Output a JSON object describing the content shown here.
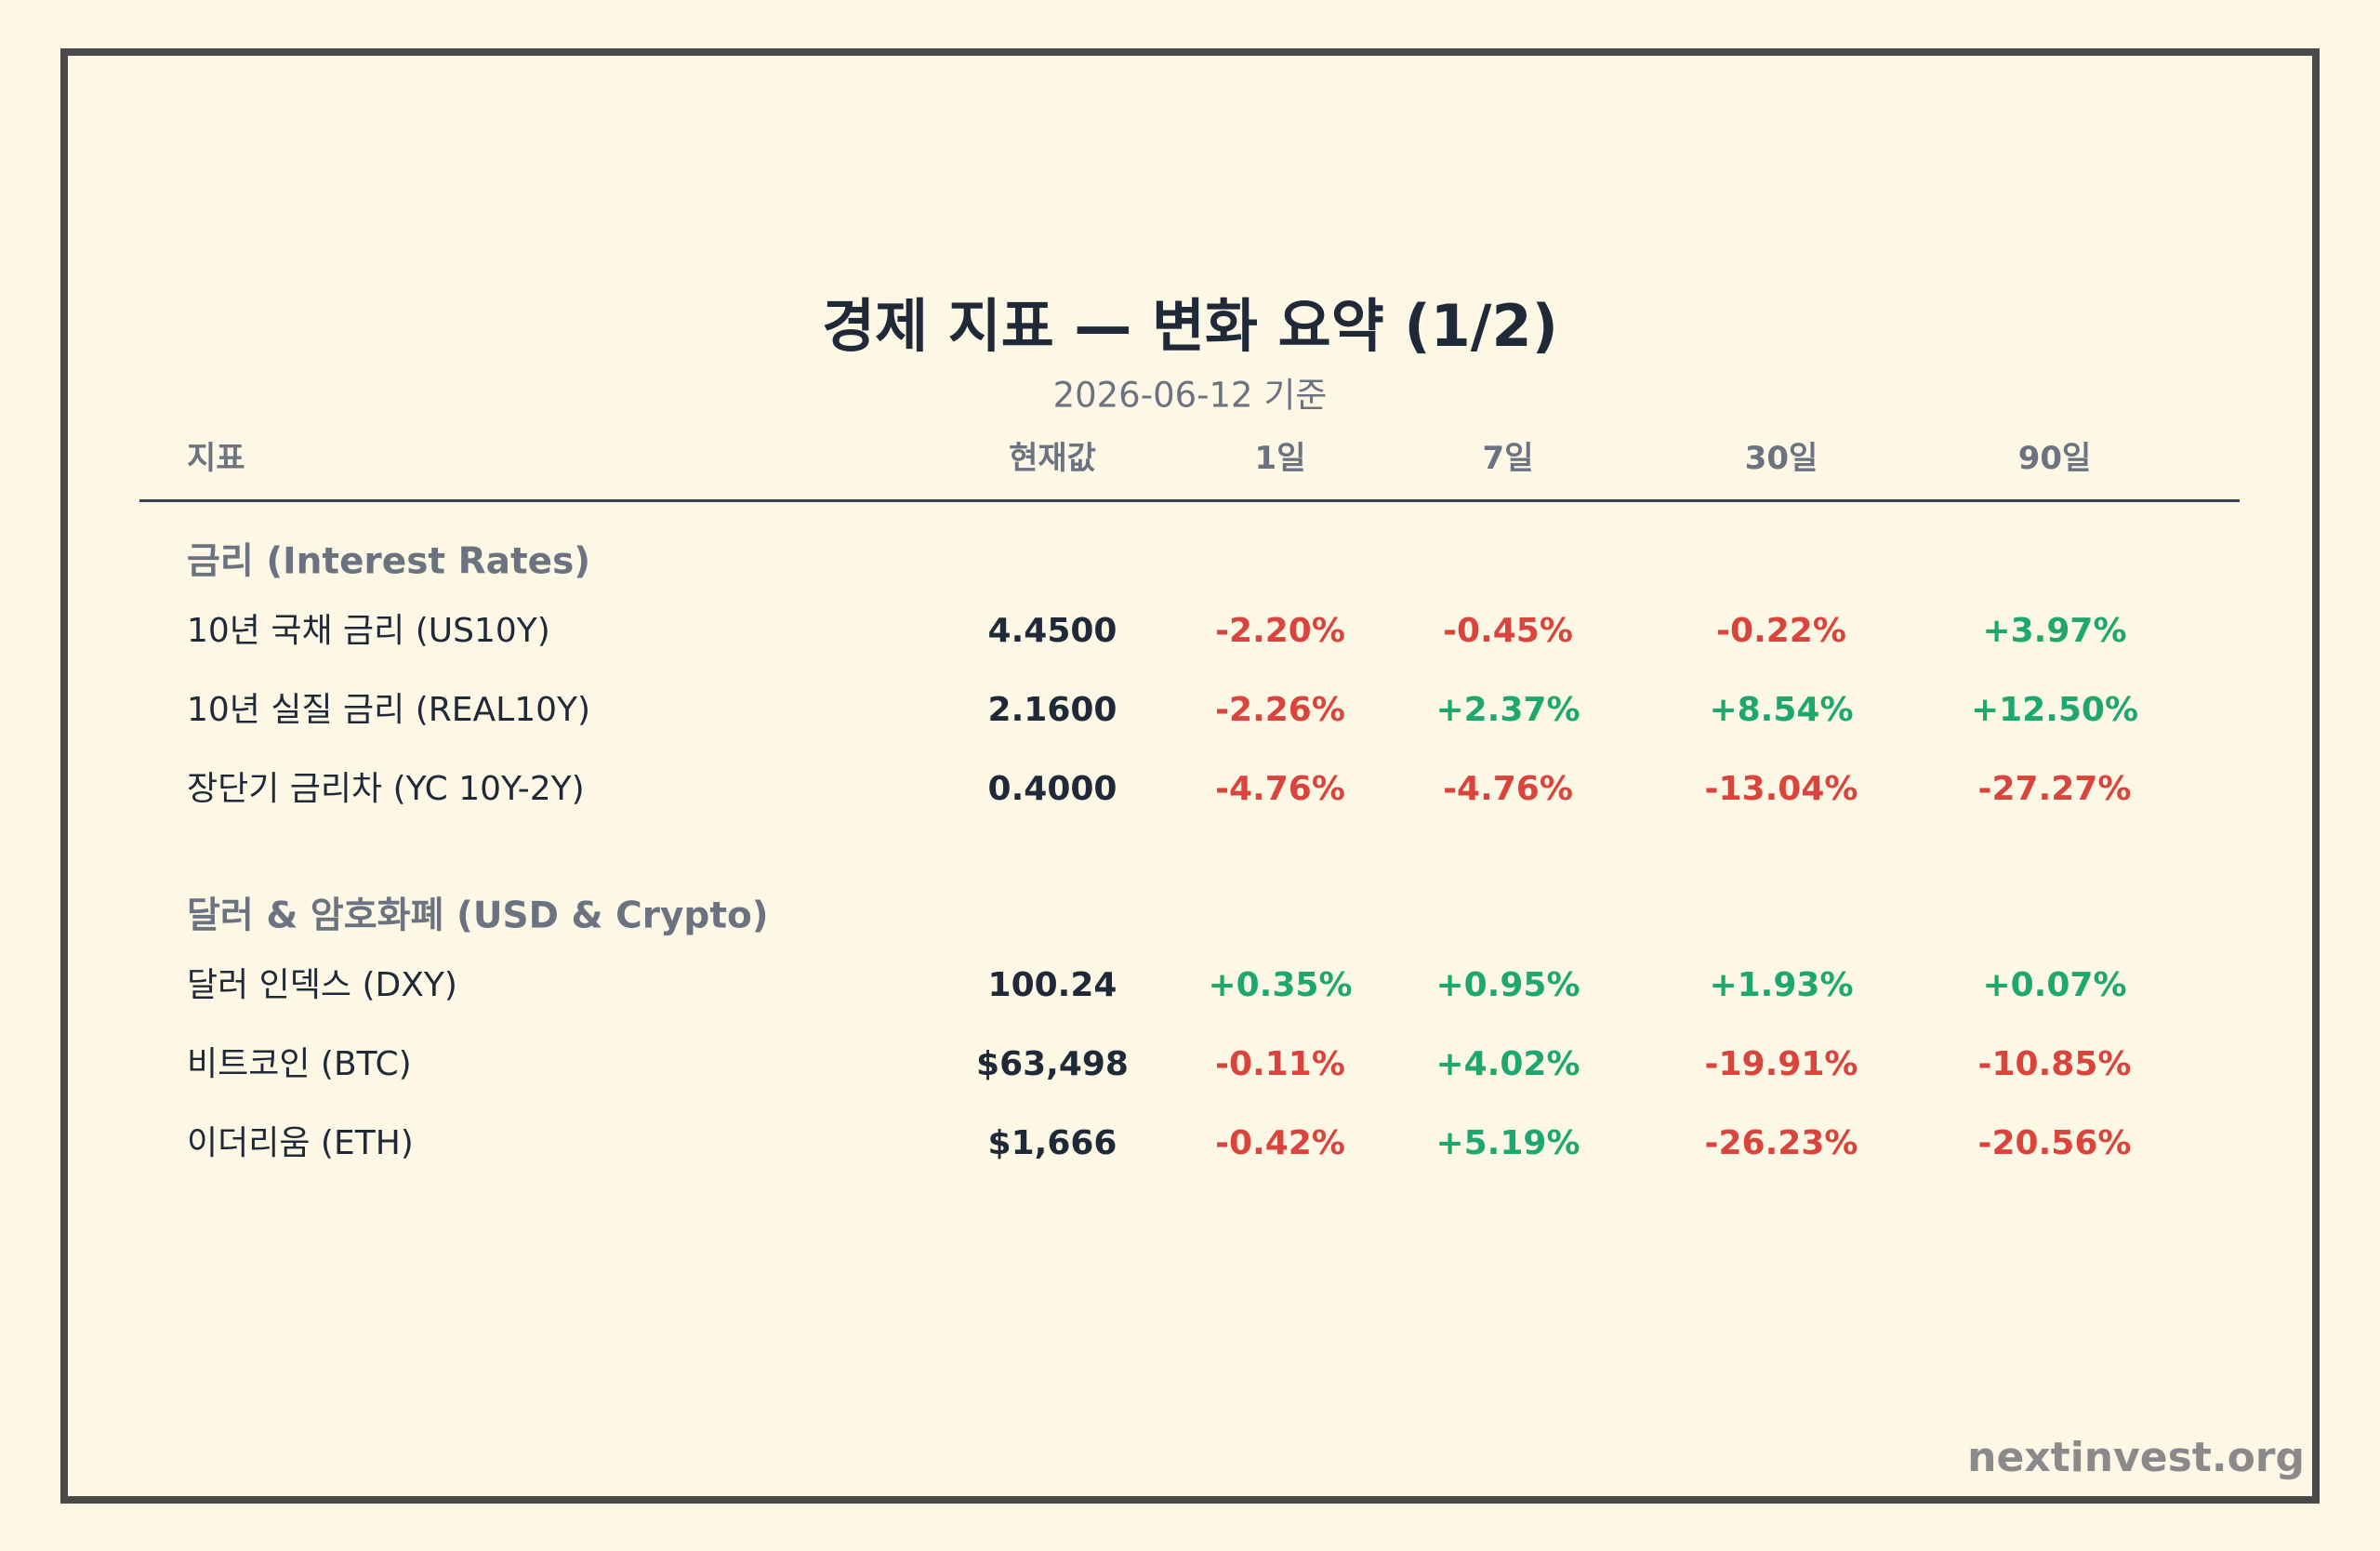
{
  "header": {
    "title": "경제 지표 — 변화 요약 (1/2)",
    "subtitle": "2026-06-12 기준"
  },
  "table": {
    "columns": [
      "지표",
      "현재값",
      "1일",
      "7일",
      "30일",
      "90일"
    ],
    "sections": [
      {
        "title": "금리 (Interest Rates)",
        "rows": [
          [
            "10년 국채 금리 (US10Y)",
            "4.4500",
            "-2.20%",
            "-0.45%",
            "-0.22%",
            "+3.97%"
          ],
          [
            "10년 실질 금리 (REAL10Y)",
            "2.1600",
            "-2.26%",
            "+2.37%",
            "+8.54%",
            "+12.50%"
          ],
          [
            "장단기 금리차 (YC 10Y-2Y)",
            "0.4000",
            "-4.76%",
            "-4.76%",
            "-13.04%",
            "-27.27%"
          ]
        ]
      },
      {
        "title": "달러 & 암호화폐 (USD & Crypto)",
        "rows": [
          [
            "달러 인덱스 (DXY)",
            "100.24",
            "+0.35%",
            "+0.95%",
            "+1.93%",
            "+0.07%"
          ],
          [
            "비트코인 (BTC)",
            "$63,498",
            "-0.11%",
            "+4.02%",
            "-19.91%",
            "-10.85%"
          ],
          [
            "이더리움 (ETH)",
            "$1,666",
            "-0.42%",
            "+5.19%",
            "-26.23%",
            "-20.56%"
          ]
        ]
      }
    ]
  },
  "footer": {
    "brand": "nextinvest.org"
  }
}
